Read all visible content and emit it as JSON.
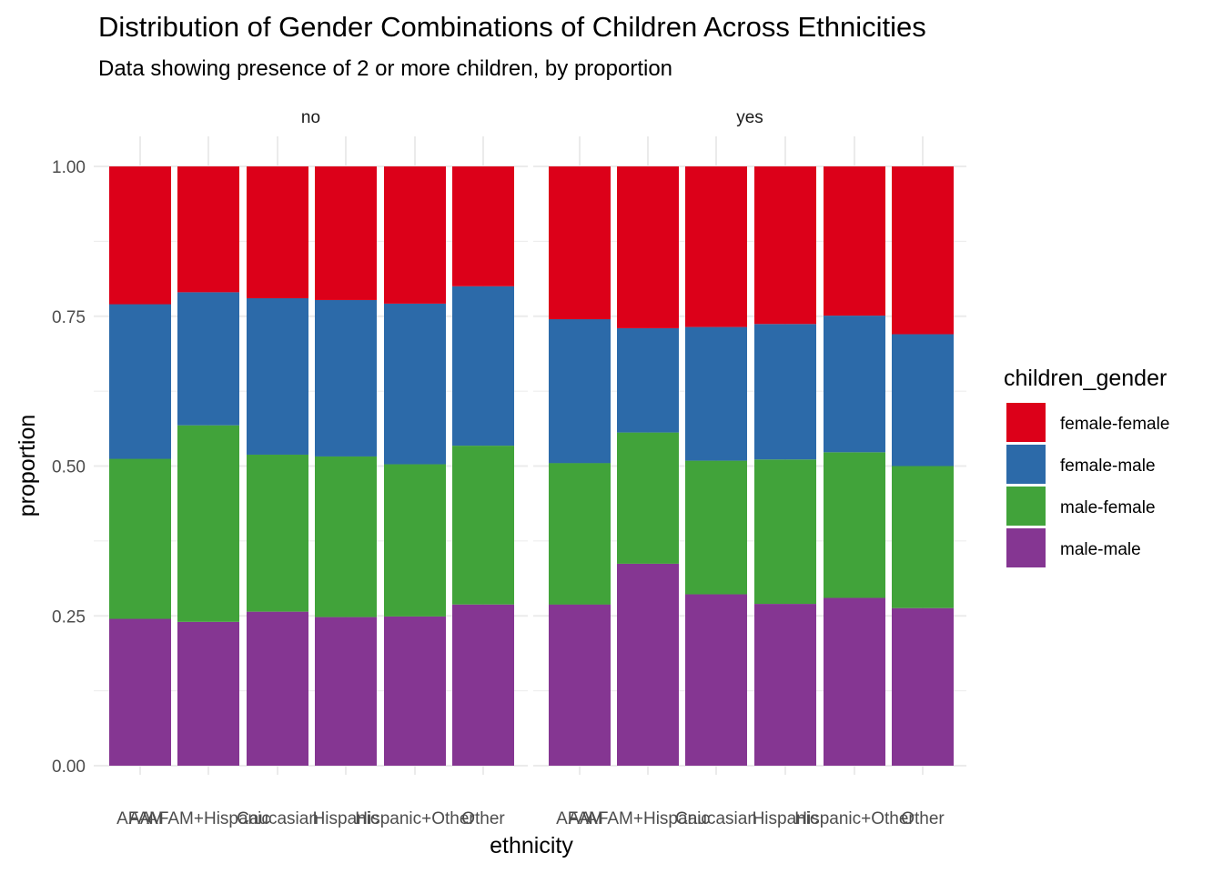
{
  "chart_data": {
    "type": "bar",
    "stacked": true,
    "title": "Distribution of Gender Combinations of Children Across Ethnicities",
    "subtitle": "Data showing presence of 2 or more children, by proportion",
    "xlabel": "ethnicity",
    "ylabel": "proportion",
    "ylim": [
      0,
      1
    ],
    "yticks": [
      "0.00",
      "0.25",
      "0.50",
      "0.75",
      "1.00"
    ],
    "ytick_values": [
      0,
      0.25,
      0.5,
      0.75,
      1
    ],
    "categories": [
      "AA",
      "AFAM",
      "AFAM+Hispanic",
      "Caucasian",
      "Hispanic",
      "Hispanic+Other",
      "Other"
    ],
    "grid": true,
    "legend": {
      "title": "children_gender",
      "position": "right",
      "entries": [
        "female-female",
        "female-male",
        "male-female",
        "male-male"
      ]
    },
    "colors": {
      "female-female": "#DC0019",
      "female-male": "#2C6AA9",
      "male-female": "#41A33A",
      "male-male": "#853692"
    },
    "panels": [
      {
        "label": "no",
        "bars": [
          {
            "category": "AA",
            "values": {
              "male-male": 0.245,
              "male-female": 0.267,
              "female-male": 0.258,
              "female-female": 0.23
            }
          },
          {
            "category": "AFAM",
            "values": {
              "male-male": 0.245,
              "male-female": 0.267,
              "female-male": 0.258,
              "female-female": 0.23
            }
          },
          {
            "category": "AFAM+Hispanic",
            "values": {
              "male-male": 0.24,
              "male-female": 0.328,
              "female-male": 0.222,
              "female-female": 0.21
            }
          },
          {
            "category": "Caucasian",
            "values": {
              "male-male": 0.257,
              "male-female": 0.262,
              "female-male": 0.261,
              "female-female": 0.22
            }
          },
          {
            "category": "Hispanic",
            "values": {
              "male-male": 0.248,
              "male-female": 0.268,
              "female-male": 0.261,
              "female-female": 0.223
            }
          },
          {
            "category": "Hispanic+Other",
            "values": {
              "male-male": 0.249,
              "male-female": 0.254,
              "female-male": 0.268,
              "female-female": 0.229
            }
          },
          {
            "category": "Other",
            "values": {
              "male-male": 0.269,
              "male-female": 0.265,
              "female-male": 0.266,
              "female-female": 0.2
            }
          }
        ]
      },
      {
        "label": "yes",
        "bars": [
          {
            "category": "AA",
            "values": {
              "male-male": 0.269,
              "male-female": 0.236,
              "female-male": 0.24,
              "female-female": 0.255
            }
          },
          {
            "category": "AFAM",
            "values": {
              "male-male": 0.269,
              "male-female": 0.236,
              "female-male": 0.24,
              "female-female": 0.255
            }
          },
          {
            "category": "AFAM+Hispanic",
            "values": {
              "male-male": 0.337,
              "male-female": 0.219,
              "female-male": 0.174,
              "female-female": 0.27
            }
          },
          {
            "category": "Caucasian",
            "values": {
              "male-male": 0.286,
              "male-female": 0.223,
              "female-male": 0.223,
              "female-female": 0.268
            }
          },
          {
            "category": "Hispanic",
            "values": {
              "male-male": 0.27,
              "male-female": 0.241,
              "female-male": 0.226,
              "female-female": 0.263
            }
          },
          {
            "category": "Hispanic+Other",
            "values": {
              "male-male": 0.28,
              "male-female": 0.243,
              "female-male": 0.228,
              "female-female": 0.249
            }
          },
          {
            "category": "Other",
            "values": {
              "male-male": 0.263,
              "male-female": 0.237,
              "female-male": 0.22,
              "female-female": 0.28
            }
          }
        ]
      }
    ]
  }
}
